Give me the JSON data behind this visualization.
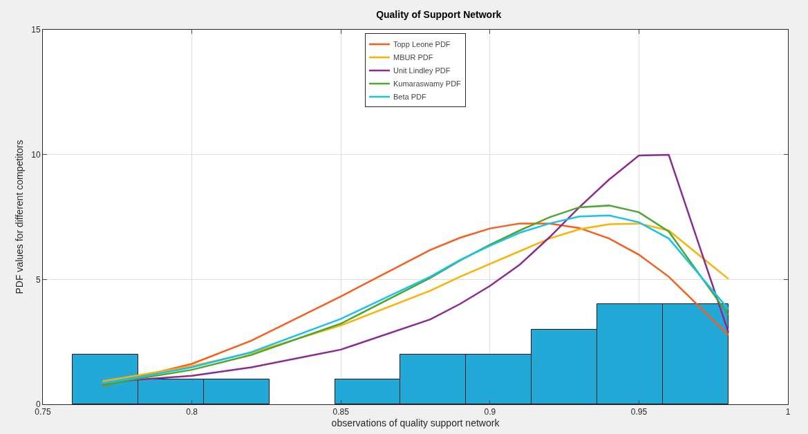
{
  "chart_data": {
    "type": "histogram",
    "title": "Quality of Support Network",
    "xlabel": "observations of quality support network",
    "ylabel": "PDF values for different competitors",
    "bins": [
      0.76,
      0.782,
      0.804,
      0.826,
      0.848,
      0.87,
      0.892,
      0.914,
      0.936,
      0.958,
      0.98
    ],
    "values": [
      2,
      1,
      1,
      0,
      1,
      2,
      2,
      3,
      4,
      4
    ],
    "color": "#22a9d8",
    "series": [
      {
        "name": "Topp Leone PDF",
        "type": "line",
        "color": "#ff5a1a",
        "x": [
          0.77,
          0.78,
          0.8,
          0.82,
          0.85,
          0.88,
          0.89,
          0.9,
          0.91,
          0.92,
          0.93,
          0.94,
          0.95,
          0.96,
          0.98
        ],
        "values": [
          0.72,
          1.04,
          1.62,
          2.55,
          4.32,
          6.18,
          6.67,
          7.04,
          7.24,
          7.24,
          7.06,
          6.64,
          5.99,
          5.11,
          2.77
        ]
      },
      {
        "name": "MBUR PDF",
        "type": "line",
        "color": "#ffb000",
        "x": [
          0.77,
          0.78,
          0.8,
          0.82,
          0.85,
          0.88,
          0.89,
          0.9,
          0.91,
          0.92,
          0.93,
          0.94,
          0.95,
          0.96,
          0.98
        ],
        "values": [
          0.92,
          1.12,
          1.53,
          2.06,
          3.16,
          4.55,
          5.11,
          5.62,
          6.13,
          6.64,
          7.01,
          7.21,
          7.24,
          6.96,
          5.02
        ]
      },
      {
        "name": "Unit Lindley PDF",
        "type": "line",
        "color": "#8e2a8f",
        "x": [
          0.77,
          0.78,
          0.8,
          0.82,
          0.85,
          0.88,
          0.89,
          0.9,
          0.91,
          0.92,
          0.93,
          0.94,
          0.95,
          0.96,
          0.98
        ],
        "values": [
          0.8,
          0.97,
          1.14,
          1.48,
          2.19,
          3.4,
          4.02,
          4.74,
          5.59,
          6.69,
          7.89,
          9.0,
          9.96,
          9.99,
          2.89
        ]
      },
      {
        "name": "Kumaraswamy PDF",
        "type": "line",
        "color": "#4ea72c",
        "x": [
          0.77,
          0.78,
          0.8,
          0.82,
          0.85,
          0.88,
          0.89,
          0.9,
          0.91,
          0.92,
          0.93,
          0.94,
          0.95,
          0.96,
          0.98
        ],
        "values": [
          0.75,
          0.99,
          1.38,
          1.98,
          3.23,
          5.06,
          5.76,
          6.39,
          6.96,
          7.49,
          7.89,
          7.96,
          7.69,
          6.92,
          3.58
        ]
      },
      {
        "name": "Beta PDF",
        "type": "line",
        "color": "#18c2ec",
        "x": [
          0.77,
          0.78,
          0.8,
          0.82,
          0.85,
          0.88,
          0.89,
          0.9,
          0.91,
          0.92,
          0.93,
          0.94,
          0.95,
          0.96,
          0.98
        ],
        "values": [
          0.83,
          1.04,
          1.48,
          2.09,
          3.42,
          5.11,
          5.78,
          6.35,
          6.87,
          7.24,
          7.52,
          7.56,
          7.29,
          6.64,
          3.81
        ]
      }
    ],
    "xlim": [
      0.75,
      1
    ],
    "xticks": [
      0.75,
      0.8,
      0.85,
      0.9,
      0.95,
      1
    ],
    "ylim": [
      0,
      15
    ],
    "yticks": [
      0,
      5,
      10,
      15
    ],
    "grid": true,
    "legend": "top",
    "marker": "none",
    "line_style": "solid"
  }
}
